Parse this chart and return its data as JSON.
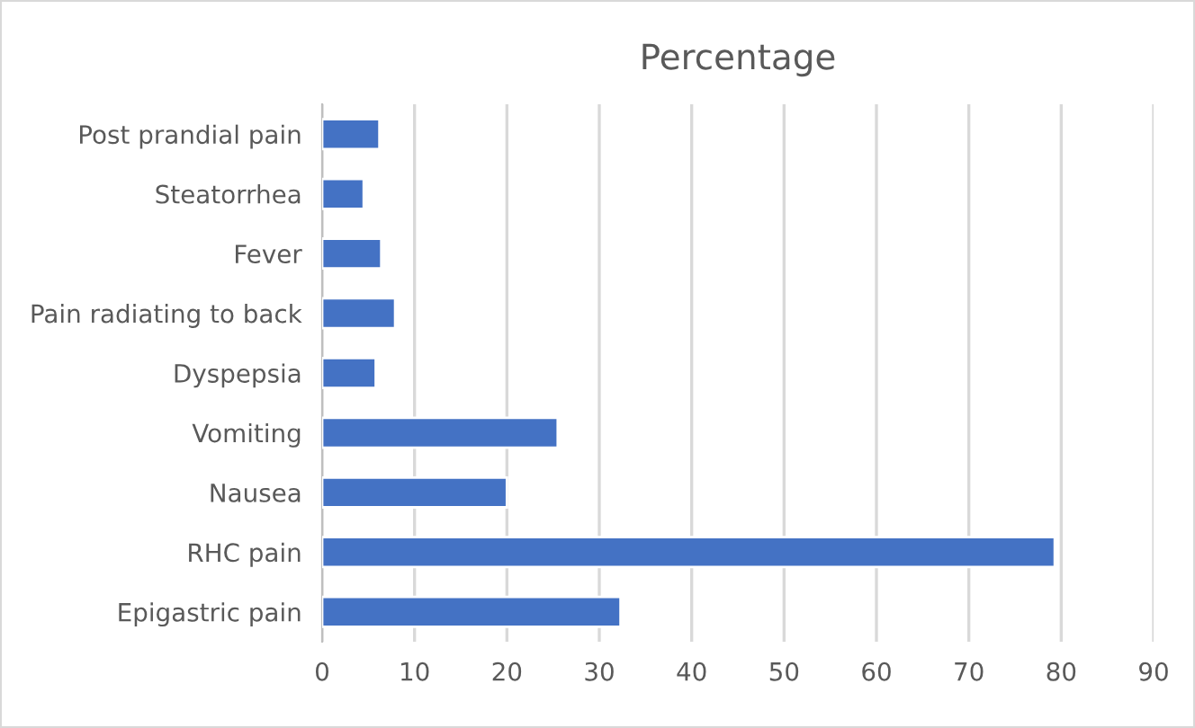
{
  "chart_data": {
    "type": "bar",
    "orientation": "horizontal",
    "title": "Percentage",
    "categories": [
      "Post prandial pain",
      "Steatorrhea",
      "Fever",
      "Pain radiating to back",
      "Dyspepsia",
      "Vomiting",
      "Nausea",
      "RHC pain",
      "Epigastric pain"
    ],
    "values": [
      6.2,
      4.5,
      6.4,
      7.9,
      5.8,
      25.5,
      20.0,
      79.3,
      32.3
    ],
    "color": "#4472c4",
    "xlim": [
      0,
      90
    ],
    "xticks": [
      0,
      10,
      20,
      30,
      40,
      50,
      60,
      70,
      80,
      90
    ],
    "grid": "x",
    "legend": false
  }
}
